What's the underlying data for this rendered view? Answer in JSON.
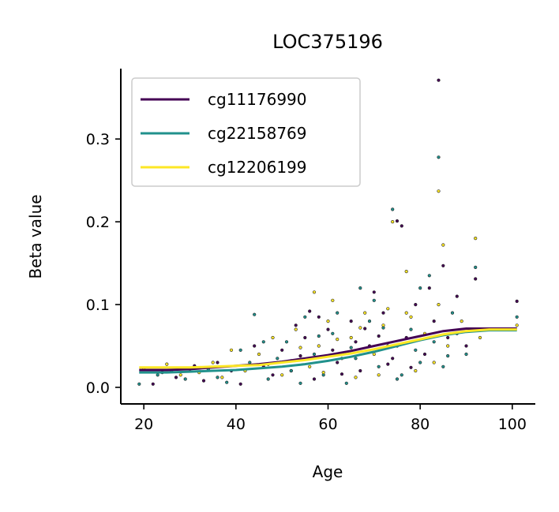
{
  "chart_data": {
    "type": "scatter",
    "title": "LOC375196",
    "xlabel": "Age",
    "ylabel": "Beta value",
    "xlim": [
      15,
      105
    ],
    "ylim": [
      -0.02,
      0.385
    ],
    "xticks": [
      20,
      40,
      60,
      80,
      100
    ],
    "yticks": [
      0.0,
      0.1,
      0.2,
      0.3
    ],
    "ytick_labels": [
      "0.0",
      "0.1",
      "0.2",
      "0.3"
    ],
    "legend_position": "top-left",
    "grid": false,
    "series": [
      {
        "name": "cg11176990",
        "color": "#440154",
        "trend": {
          "x": [
            19,
            25,
            30,
            35,
            40,
            45,
            50,
            55,
            60,
            65,
            70,
            75,
            80,
            85,
            90,
            95,
            101
          ],
          "y": [
            0.021,
            0.021,
            0.022,
            0.024,
            0.026,
            0.028,
            0.031,
            0.035,
            0.039,
            0.044,
            0.05,
            0.056,
            0.062,
            0.068,
            0.071,
            0.071,
            0.071
          ]
        },
        "points": [
          [
            84,
            0.371
          ],
          [
            75,
            0.201
          ],
          [
            101,
            0.104
          ],
          [
            70,
            0.115
          ],
          [
            76,
            0.195
          ],
          [
            85,
            0.147
          ],
          [
            92,
            0.131
          ],
          [
            88,
            0.11
          ],
          [
            22,
            0.004
          ],
          [
            27,
            0.012
          ],
          [
            33,
            0.008
          ],
          [
            36,
            0.03
          ],
          [
            41,
            0.004
          ],
          [
            46,
            0.025
          ],
          [
            50,
            0.045
          ],
          [
            52,
            0.02
          ],
          [
            55,
            0.06
          ],
          [
            57,
            0.01
          ],
          [
            60,
            0.07
          ],
          [
            62,
            0.03
          ],
          [
            65,
            0.08
          ],
          [
            67,
            0.02
          ],
          [
            69,
            0.05
          ],
          [
            72,
            0.09
          ],
          [
            74,
            0.035
          ],
          [
            77,
            0.06
          ],
          [
            79,
            0.1
          ],
          [
            81,
            0.04
          ],
          [
            83,
            0.08
          ],
          [
            86,
            0.06
          ],
          [
            58,
            0.085
          ],
          [
            54,
            0.038
          ],
          [
            48,
            0.015
          ],
          [
            44,
            0.05
          ],
          [
            39,
            0.02
          ],
          [
            31,
            0.026
          ],
          [
            24,
            0.018
          ],
          [
            63,
            0.016
          ],
          [
            71,
            0.062
          ],
          [
            78,
            0.024
          ],
          [
            82,
            0.12
          ],
          [
            90,
            0.05
          ],
          [
            66,
            0.055
          ],
          [
            53,
            0.075
          ],
          [
            61,
            0.045
          ],
          [
            73,
            0.028
          ],
          [
            56,
            0.092
          ],
          [
            68,
            0.071
          ]
        ]
      },
      {
        "name": "cg22158769",
        "color": "#21918c",
        "trend": {
          "x": [
            19,
            25,
            30,
            35,
            40,
            45,
            50,
            55,
            60,
            65,
            70,
            75,
            80,
            85,
            90,
            95,
            101
          ],
          "y": [
            0.018,
            0.018,
            0.019,
            0.02,
            0.021,
            0.023,
            0.025,
            0.028,
            0.032,
            0.037,
            0.043,
            0.05,
            0.057,
            0.063,
            0.067,
            0.069,
            0.069
          ]
        },
        "points": [
          [
            84,
            0.278
          ],
          [
            74,
            0.215
          ],
          [
            82,
            0.135
          ],
          [
            92,
            0.145
          ],
          [
            80,
            0.12
          ],
          [
            67,
            0.12
          ],
          [
            44,
            0.088
          ],
          [
            101,
            0.085
          ],
          [
            19,
            0.004
          ],
          [
            23,
            0.015
          ],
          [
            29,
            0.01
          ],
          [
            34,
            0.022
          ],
          [
            38,
            0.006
          ],
          [
            43,
            0.03
          ],
          [
            47,
            0.01
          ],
          [
            51,
            0.055
          ],
          [
            54,
            0.005
          ],
          [
            57,
            0.04
          ],
          [
            59,
            0.015
          ],
          [
            61,
            0.065
          ],
          [
            64,
            0.005
          ],
          [
            66,
            0.035
          ],
          [
            69,
            0.08
          ],
          [
            71,
            0.025
          ],
          [
            73,
            0.05
          ],
          [
            76,
            0.015
          ],
          [
            78,
            0.07
          ],
          [
            80,
            0.03
          ],
          [
            83,
            0.055
          ],
          [
            85,
            0.025
          ],
          [
            88,
            0.065
          ],
          [
            90,
            0.04
          ],
          [
            62,
            0.09
          ],
          [
            55,
            0.085
          ],
          [
            49,
            0.035
          ],
          [
            41,
            0.045
          ],
          [
            36,
            0.012
          ],
          [
            26,
            0.02
          ],
          [
            70,
            0.105
          ],
          [
            75,
            0.01
          ],
          [
            87,
            0.09
          ],
          [
            58,
            0.062
          ],
          [
            65,
            0.048
          ],
          [
            72,
            0.072
          ],
          [
            52,
            0.02
          ],
          [
            46,
            0.055
          ],
          [
            79,
            0.045
          ],
          [
            86,
            0.038
          ]
        ]
      },
      {
        "name": "cg12206199",
        "color": "#fde725",
        "trend": {
          "x": [
            19,
            25,
            30,
            35,
            40,
            45,
            50,
            55,
            60,
            65,
            70,
            75,
            80,
            85,
            90,
            95,
            101
          ],
          "y": [
            0.024,
            0.024,
            0.024,
            0.025,
            0.026,
            0.027,
            0.03,
            0.033,
            0.037,
            0.041,
            0.046,
            0.052,
            0.058,
            0.064,
            0.068,
            0.07,
            0.07
          ]
        },
        "points": [
          [
            84,
            0.237
          ],
          [
            74,
            0.2
          ],
          [
            92,
            0.18
          ],
          [
            85,
            0.172
          ],
          [
            77,
            0.14
          ],
          [
            61,
            0.105
          ],
          [
            57,
            0.115
          ],
          [
            101,
            0.075
          ],
          [
            20,
            0.022
          ],
          [
            25,
            0.028
          ],
          [
            28,
            0.015
          ],
          [
            32,
            0.018
          ],
          [
            35,
            0.03
          ],
          [
            39,
            0.045
          ],
          [
            42,
            0.02
          ],
          [
            45,
            0.04
          ],
          [
            48,
            0.06
          ],
          [
            50,
            0.015
          ],
          [
            53,
            0.07
          ],
          [
            56,
            0.025
          ],
          [
            58,
            0.05
          ],
          [
            60,
            0.08
          ],
          [
            63,
            0.035
          ],
          [
            65,
            0.06
          ],
          [
            68,
            0.09
          ],
          [
            70,
            0.04
          ],
          [
            72,
            0.075
          ],
          [
            75,
            0.05
          ],
          [
            77,
            0.09
          ],
          [
            79,
            0.02
          ],
          [
            81,
            0.065
          ],
          [
            84,
            0.1
          ],
          [
            86,
            0.05
          ],
          [
            89,
            0.08
          ],
          [
            93,
            0.06
          ],
          [
            66,
            0.012
          ],
          [
            54,
            0.048
          ],
          [
            47,
            0.028
          ],
          [
            37,
            0.012
          ],
          [
            30,
            0.022
          ],
          [
            62,
            0.058
          ],
          [
            71,
            0.015
          ],
          [
            78,
            0.085
          ],
          [
            83,
            0.03
          ],
          [
            59,
            0.018
          ],
          [
            67,
            0.072
          ],
          [
            73,
            0.095
          ],
          [
            52,
            0.032
          ]
        ]
      }
    ]
  }
}
